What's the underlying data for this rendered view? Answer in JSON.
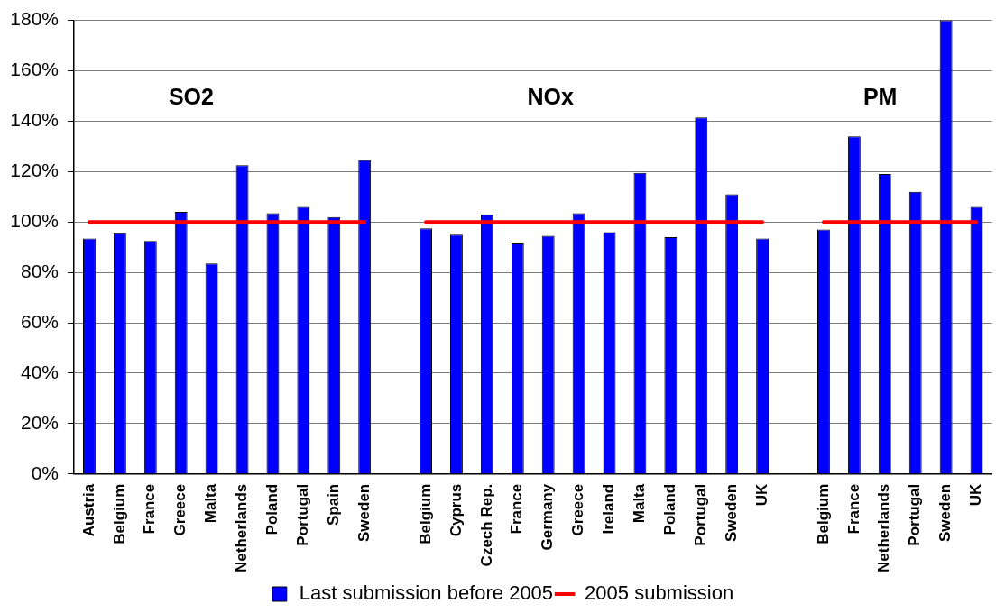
{
  "chart_data": {
    "type": "bar",
    "categories": [
      "Austria",
      "Belgium",
      "France",
      "Greece",
      "Malta",
      "Netherlands",
      "Poland",
      "Portugal",
      "Spain",
      "Sweden",
      null,
      "Belgium",
      "Cyprus",
      "Czech Rep.",
      "France",
      "Germany",
      "Greece",
      "Ireland",
      "Malta",
      "Poland",
      "Portugal",
      "Sweden",
      "UK",
      null,
      "Belgium",
      "France",
      "Netherlands",
      "Portugal",
      "Sweden",
      "UK"
    ],
    "series": [
      {
        "name": "Last submission before 2005",
        "color": "#0000ff",
        "values": [
          93.5,
          95.5,
          92.5,
          104,
          83.5,
          122.5,
          103.5,
          106,
          102,
          124.5,
          null,
          97.5,
          95,
          103,
          91.5,
          94.5,
          103.5,
          96,
          119.5,
          94,
          141.5,
          111,
          93.5,
          null,
          97,
          134,
          119,
          112,
          180,
          106
        ]
      },
      {
        "name": "2005 submission",
        "type": "line",
        "color": "#ff0000",
        "values": [
          100,
          100,
          100,
          100,
          100,
          100,
          100,
          100,
          100,
          100,
          null,
          100,
          100,
          100,
          100,
          100,
          100,
          100,
          100,
          100,
          100,
          100,
          100,
          null,
          100,
          100,
          100,
          100,
          100,
          100
        ]
      }
    ],
    "ylim": [
      0,
      180
    ],
    "yticks": [
      {
        "value": 0,
        "label": "0%"
      },
      {
        "value": 20,
        "label": "20%"
      },
      {
        "value": 40,
        "label": "40%"
      },
      {
        "value": 60,
        "label": "60%"
      },
      {
        "value": 80,
        "label": "80%"
      },
      {
        "value": 100,
        "label": "100%"
      },
      {
        "value": 120,
        "label": "120%"
      },
      {
        "value": 140,
        "label": "140%"
      },
      {
        "value": 160,
        "label": "160%"
      },
      {
        "value": 180,
        "label": "180%"
      }
    ],
    "grid": "y",
    "legend": "bottom",
    "marker": "none",
    "line_style": "solid",
    "annotations": [
      "SO2",
      "NOx",
      "PM"
    ]
  }
}
